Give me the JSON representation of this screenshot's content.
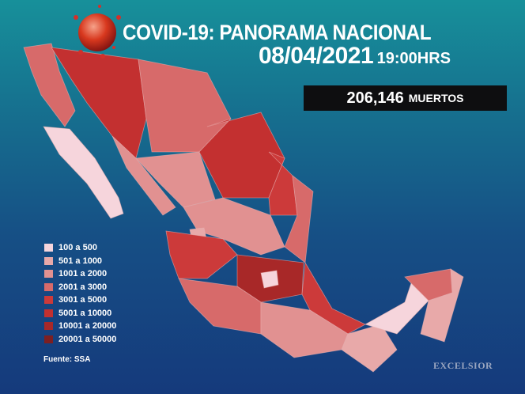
{
  "header": {
    "title": "COVID-19: PANORAMA NACIONAL",
    "date": "08/04/2021",
    "time": "19:00HRS"
  },
  "deaths": {
    "count": "206,146",
    "label": "MUERTOS"
  },
  "legend": [
    {
      "label": "100 a 500",
      "color": "#f6d5dc"
    },
    {
      "label": "501 a 1000",
      "color": "#e8a9a9"
    },
    {
      "label": "1001 a 2000",
      "color": "#e19191"
    },
    {
      "label": "2001 a 3000",
      "color": "#d76a6a"
    },
    {
      "label": "3001 a 5000",
      "color": "#cc3a3a"
    },
    {
      "label": "5001 a 10000",
      "color": "#c33030"
    },
    {
      "label": "10001 a 20000",
      "color": "#a82828"
    },
    {
      "label": "20001 a 50000",
      "color": "#7d1f22"
    }
  ],
  "source": "Fuente: SSA",
  "brand": "EXCELSIOR",
  "logo_icon": "globe-virus-icon"
}
